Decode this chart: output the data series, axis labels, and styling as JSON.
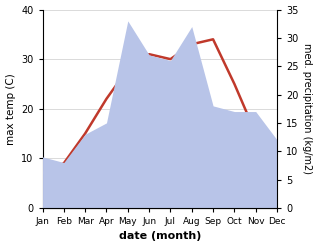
{
  "months": [
    "Jan",
    "Feb",
    "Mar",
    "Apr",
    "May",
    "Jun",
    "Jul",
    "Aug",
    "Sep",
    "Oct",
    "Nov",
    "Dec"
  ],
  "temperature": [
    7,
    9,
    15,
    22,
    28,
    31,
    30,
    33,
    34,
    25,
    15,
    10
  ],
  "precipitation": [
    9,
    8,
    13,
    15,
    33,
    27,
    26,
    32,
    18,
    17,
    17,
    12
  ],
  "temp_color": "#c0392b",
  "precip_fill_color": "#b8c4e8",
  "temp_ylim": [
    0,
    40
  ],
  "precip_ylim": [
    0,
    35
  ],
  "temp_yticks": [
    0,
    10,
    20,
    30,
    40
  ],
  "precip_yticks": [
    0,
    5,
    10,
    15,
    20,
    25,
    30,
    35
  ],
  "xlabel": "date (month)",
  "ylabel_left": "max temp (C)",
  "ylabel_right": "med. precipitation (kg/m2)",
  "bg_color": "#ffffff",
  "fig_width": 3.18,
  "fig_height": 2.47,
  "dpi": 100,
  "temp_linewidth": 1.8
}
